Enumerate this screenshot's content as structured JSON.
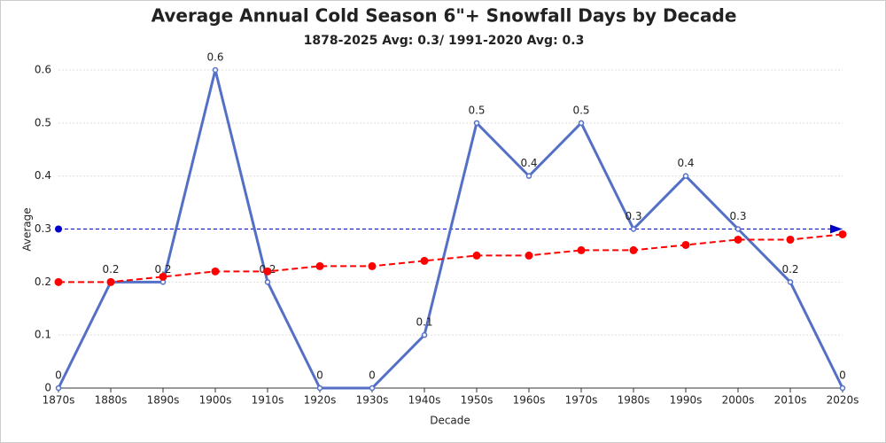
{
  "chart_data": {
    "type": "line",
    "title": "Average Annual Cold Season 6\"+ Snowfall Days by Decade",
    "subtitle": "1878-2025 Avg: 0.3/ 1991-2020 Avg: 0.3",
    "x_label": "Decade",
    "y_label": "Average",
    "categories": [
      "1870s",
      "1880s",
      "1890s",
      "1900s",
      "1910s",
      "1920s",
      "1930s",
      "1940s",
      "1950s",
      "1960s",
      "1970s",
      "1980s",
      "1990s",
      "2000s",
      "2010s",
      "2020s"
    ],
    "series": [
      {
        "color": "#5470c6",
        "values": [
          0,
          0.2,
          0.2,
          0.6,
          0.2,
          0,
          0,
          0.1,
          0.5,
          0.4,
          0.5,
          0.3,
          0.4,
          0.3,
          0.2,
          0
        ],
        "data_labels": true
      },
      {
        "color": "#ff0000",
        "dashed": true,
        "values": [
          0.2,
          0.2,
          0.21,
          0.22,
          0.22,
          0.23,
          0.23,
          0.24,
          0.25,
          0.25,
          0.26,
          0.26,
          0.27,
          0.28,
          0.28,
          0.29
        ]
      }
    ],
    "average_line": {
      "value": 0.3,
      "color": "#0000cc"
    },
    "ylim": [
      0,
      0.6
    ],
    "yticks": [
      0,
      0.1,
      0.2,
      0.3,
      0.4,
      0.5,
      0.6
    ],
    "grid": true
  }
}
